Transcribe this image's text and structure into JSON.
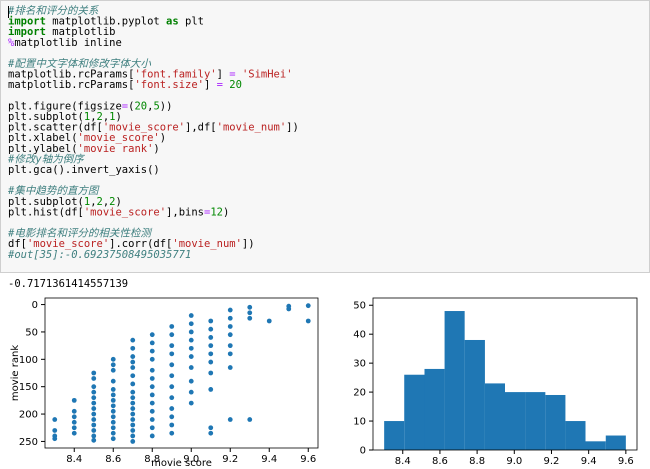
{
  "code": {
    "lines": [
      [
        [
          "#排名和评分的关系",
          "cm"
        ]
      ],
      [
        [
          "import",
          "kw"
        ],
        [
          " matplotlib.pyplot ",
          "pl"
        ],
        [
          "as",
          "kw"
        ],
        [
          " plt",
          "pl"
        ]
      ],
      [
        [
          "import",
          "kw"
        ],
        [
          " matplotlib",
          "pl"
        ]
      ],
      [
        [
          "%",
          "op"
        ],
        [
          "matplotlib inline",
          "pl"
        ]
      ],
      [],
      [
        [
          "#配置中文字体和修改字体大小",
          "cm"
        ]
      ],
      [
        [
          "matplotlib.rcParams[",
          "pl"
        ],
        [
          "'font.family'",
          "str"
        ],
        [
          "] ",
          "pl"
        ],
        [
          "=",
          "op"
        ],
        [
          " ",
          "pl"
        ],
        [
          "'SimHei'",
          "str"
        ]
      ],
      [
        [
          "matplotlib.rcParams[",
          "pl"
        ],
        [
          "'font.size'",
          "str"
        ],
        [
          "] ",
          "pl"
        ],
        [
          "=",
          "op"
        ],
        [
          " ",
          "pl"
        ],
        [
          "20",
          "num"
        ]
      ],
      [],
      [
        [
          "plt.figure(figsize",
          "pl"
        ],
        [
          "=",
          "op"
        ],
        [
          "(",
          "pl"
        ],
        [
          "20",
          "num"
        ],
        [
          ",",
          "pl"
        ],
        [
          "5",
          "num"
        ],
        [
          "))",
          "pl"
        ]
      ],
      [
        [
          "plt.subplot(",
          "pl"
        ],
        [
          "1",
          "num"
        ],
        [
          ",",
          "pl"
        ],
        [
          "2",
          "num"
        ],
        [
          ",",
          "pl"
        ],
        [
          "1",
          "num"
        ],
        [
          ")",
          "pl"
        ]
      ],
      [
        [
          "plt.scatter(df[",
          "pl"
        ],
        [
          "'movie_score'",
          "str"
        ],
        [
          "],df[",
          "pl"
        ],
        [
          "'movie_num'",
          "str"
        ],
        [
          "])",
          "pl"
        ]
      ],
      [
        [
          "plt.xlabel(",
          "pl"
        ],
        [
          "'movie_score'",
          "str"
        ],
        [
          ")",
          "pl"
        ]
      ],
      [
        [
          "plt.ylabel(",
          "pl"
        ],
        [
          "'movie rank'",
          "str"
        ],
        [
          ")",
          "pl"
        ]
      ],
      [
        [
          "#修改y轴为倒序",
          "cm"
        ]
      ],
      [
        [
          "plt.gca().invert_yaxis()",
          "pl"
        ]
      ],
      [],
      [
        [
          "#集中趋势的直方图",
          "cm"
        ]
      ],
      [
        [
          "plt.subplot(",
          "pl"
        ],
        [
          "1",
          "num"
        ],
        [
          ",",
          "pl"
        ],
        [
          "2",
          "num"
        ],
        [
          ",",
          "pl"
        ],
        [
          "2",
          "num"
        ],
        [
          ")",
          "pl"
        ]
      ],
      [
        [
          "plt.hist(df[",
          "pl"
        ],
        [
          "'movie_score'",
          "str"
        ],
        [
          "],bins",
          "pl"
        ],
        [
          "=",
          "op"
        ],
        [
          "12",
          "num"
        ],
        [
          ")",
          "pl"
        ]
      ],
      [],
      [
        [
          "#电影排名和评分的相关性检测",
          "cm"
        ]
      ],
      [
        [
          "df[",
          "pl"
        ],
        [
          "'movie_score'",
          "str"
        ],
        [
          "].corr(df[",
          "pl"
        ],
        [
          "'movie_num'",
          "str"
        ],
        [
          "])",
          "pl"
        ]
      ],
      [
        [
          "#out[35]:-0.69237508495035771",
          "cm"
        ]
      ]
    ]
  },
  "output": "-0.7171361414557139",
  "chart_data": [
    {
      "type": "scatter",
      "xlabel": "movie score",
      "ylabel": "movie rank",
      "color": "#1f77b4",
      "x": [
        8.3,
        8.3,
        8.3,
        8.3,
        8.4,
        8.4,
        8.4,
        8.4,
        8.4,
        8.4,
        8.5,
        8.5,
        8.5,
        8.5,
        8.5,
        8.5,
        8.5,
        8.5,
        8.5,
        8.5,
        8.5,
        8.5,
        8.5,
        8.6,
        8.6,
        8.6,
        8.6,
        8.6,
        8.6,
        8.6,
        8.6,
        8.6,
        8.6,
        8.6,
        8.6,
        8.6,
        8.6,
        8.7,
        8.7,
        8.7,
        8.7,
        8.7,
        8.7,
        8.7,
        8.7,
        8.7,
        8.7,
        8.7,
        8.7,
        8.7,
        8.7,
        8.7,
        8.7,
        8.7,
        8.8,
        8.8,
        8.8,
        8.8,
        8.8,
        8.8,
        8.8,
        8.8,
        8.8,
        8.8,
        8.8,
        8.8,
        8.8,
        8.9,
        8.9,
        8.9,
        8.9,
        8.9,
        8.9,
        8.9,
        8.9,
        8.9,
        8.9,
        8.9,
        8.9,
        9.0,
        9.0,
        9.0,
        9.0,
        9.0,
        9.0,
        9.0,
        9.0,
        9.0,
        9.0,
        9.1,
        9.1,
        9.1,
        9.1,
        9.1,
        9.1,
        9.1,
        9.1,
        9.1,
        9.1,
        9.2,
        9.2,
        9.2,
        9.2,
        9.2,
        9.2,
        9.2,
        9.2,
        9.3,
        9.3,
        9.3,
        9.3,
        9.4,
        9.5,
        9.5,
        9.6,
        9.6
      ],
      "y": [
        210,
        230,
        240,
        245,
        175,
        195,
        205,
        215,
        225,
        235,
        125,
        135,
        150,
        160,
        170,
        180,
        190,
        200,
        210,
        220,
        230,
        240,
        248,
        100,
        110,
        120,
        140,
        155,
        165,
        175,
        185,
        195,
        205,
        215,
        225,
        235,
        245,
        65,
        80,
        95,
        105,
        115,
        130,
        145,
        160,
        170,
        180,
        190,
        200,
        210,
        220,
        230,
        240,
        250,
        55,
        70,
        85,
        100,
        120,
        135,
        150,
        165,
        180,
        195,
        210,
        225,
        240,
        40,
        55,
        75,
        90,
        110,
        130,
        150,
        170,
        190,
        205,
        220,
        235,
        20,
        35,
        50,
        65,
        80,
        95,
        115,
        140,
        160,
        180,
        30,
        45,
        60,
        75,
        90,
        105,
        125,
        155,
        225,
        235,
        10,
        25,
        40,
        55,
        75,
        90,
        115,
        210,
        5,
        15,
        25,
        210,
        30,
        3,
        8,
        2,
        30
      ],
      "xlim": [
        8.25,
        9.65
      ],
      "xticks": [
        8.4,
        8.6,
        8.8,
        {
          "value": 9,
          "label": "9.0"
        },
        9.2,
        9.4,
        9.6
      ],
      "ylim": [
        262,
        -12
      ],
      "yticks": [
        0,
        50,
        100,
        150,
        200,
        250
      ]
    },
    {
      "type": "histogram",
      "color": "#1f77b4",
      "bins": [
        8.3,
        8.408,
        8.517,
        8.625,
        8.733,
        8.842,
        8.95,
        9.058,
        9.167,
        9.275,
        9.383,
        9.492,
        9.6
      ],
      "values": [
        10,
        26,
        28,
        48,
        38,
        23,
        20,
        20,
        19,
        10,
        3,
        5
      ],
      "xlim": [
        8.24,
        9.66
      ],
      "xticks": [
        8.4,
        8.6,
        8.8,
        {
          "value": 9,
          "label": "9.0"
        },
        9.2,
        9.4,
        9.6
      ],
      "ylim": [
        0,
        52.5
      ],
      "yticks": [
        0,
        10,
        20,
        30,
        40,
        50
      ]
    }
  ]
}
